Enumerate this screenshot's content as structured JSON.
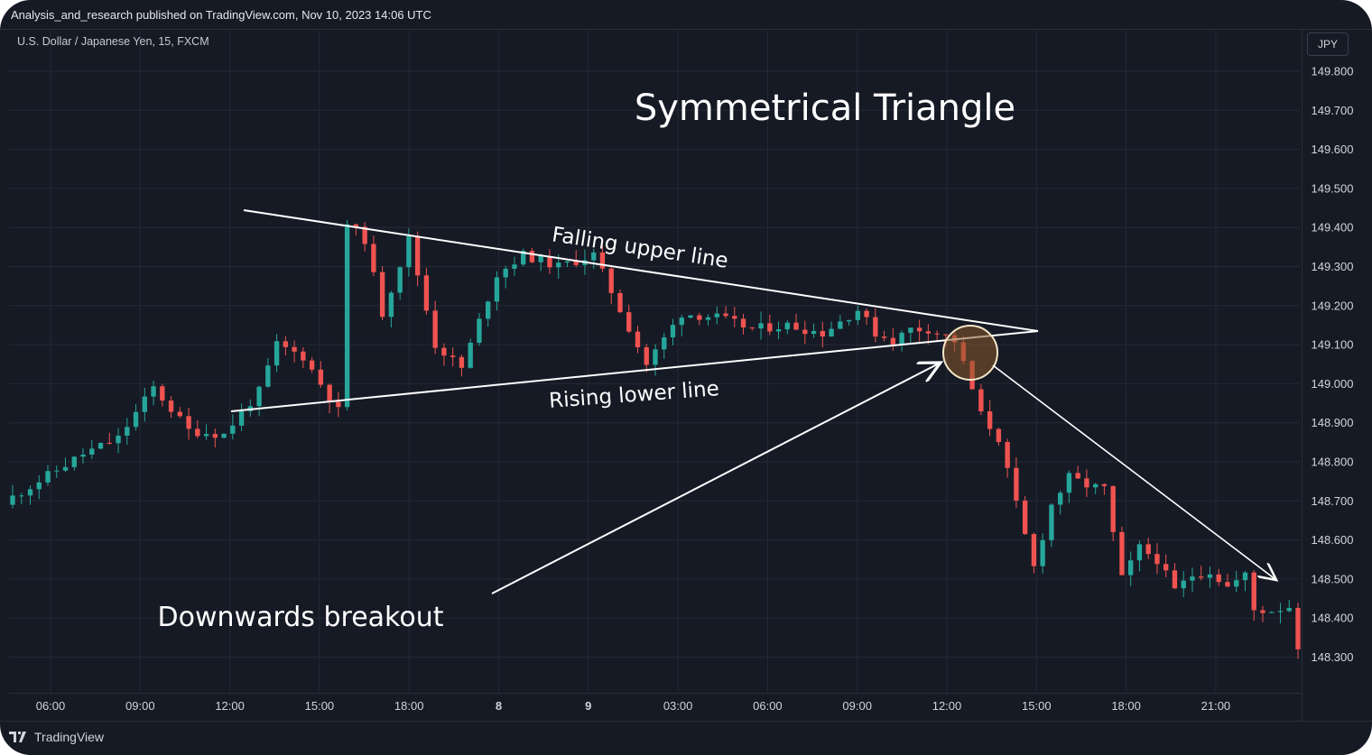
{
  "header": {
    "published": "Analysis_and_research published on TradingView.com, Nov 10, 2023 14:06 UTC"
  },
  "symbol": "U.S. Dollar / Japanese Yen, 15, FXCM",
  "currency": "JPY",
  "footer": {
    "brand": "TradingView"
  },
  "colors": {
    "background": "#161a25",
    "up": "#26a69a",
    "down": "#ef5350",
    "grid": "#242936",
    "annotation": "#ffffff",
    "highlight": "#8a5a2b"
  },
  "annotations": {
    "title": "Symmetrical Triangle",
    "upper_line_label": "Falling upper line",
    "lower_line_label": "Rising lower line",
    "breakout_label": "Downwards breakout"
  },
  "chart_data": {
    "type": "candlestick",
    "title": "Symmetrical Triangle",
    "ylabel": "",
    "xlabel": "",
    "ylim": [
      148.25,
      149.82
    ],
    "y_ticks": [
      "149.800",
      "149.700",
      "149.600",
      "149.500",
      "149.400",
      "149.300",
      "149.200",
      "149.100",
      "149.000",
      "148.900",
      "148.800",
      "148.700",
      "148.600",
      "148.500",
      "148.400",
      "148.300"
    ],
    "x_ticks": [
      "06:00",
      "09:00",
      "12:00",
      "15:00",
      "18:00",
      "8",
      "9",
      "03:00",
      "06:00",
      "09:00",
      "12:00",
      "15:00",
      "18:00",
      "21:00"
    ],
    "grid": true,
    "upper_trendline": {
      "from": [
        "12:30",
        149.45
      ],
      "to": [
        "15:00 (day 3)",
        149.135
      ]
    },
    "lower_trendline": {
      "from": [
        "12:00",
        148.94
      ],
      "to": [
        "15:00 (day 3)",
        149.135
      ]
    },
    "close_path": [
      [
        0,
        148.71
      ],
      [
        8,
        148.82
      ],
      [
        12,
        148.86
      ],
      [
        16,
        148.99
      ],
      [
        20,
        148.88
      ],
      [
        24,
        148.87
      ],
      [
        28,
        148.98
      ],
      [
        30,
        149.1
      ],
      [
        33,
        149.07
      ],
      [
        37,
        148.93
      ],
      [
        38,
        149.41
      ],
      [
        40,
        149.37
      ],
      [
        42,
        149.18
      ],
      [
        45,
        149.37
      ],
      [
        48,
        149.1
      ],
      [
        51,
        149.04
      ],
      [
        55,
        149.28
      ],
      [
        58,
        149.33
      ],
      [
        62,
        149.3
      ],
      [
        66,
        149.33
      ],
      [
        69,
        149.19
      ],
      [
        72,
        149.05
      ],
      [
        76,
        149.18
      ],
      [
        80,
        149.17
      ],
      [
        84,
        149.14
      ],
      [
        88,
        149.15
      ],
      [
        92,
        149.13
      ],
      [
        96,
        149.19
      ],
      [
        98,
        149.13
      ],
      [
        100,
        149.11
      ],
      [
        102,
        149.14
      ],
      [
        104,
        149.14
      ],
      [
        107,
        149.11
      ],
      [
        108,
        149.05
      ],
      [
        110,
        148.92
      ],
      [
        112,
        148.86
      ],
      [
        114,
        148.69
      ],
      [
        116,
        148.53
      ],
      [
        118,
        148.69
      ],
      [
        120,
        148.76
      ],
      [
        122,
        148.74
      ],
      [
        124,
        148.73
      ],
      [
        126,
        148.5
      ],
      [
        128,
        148.58
      ],
      [
        130,
        148.55
      ],
      [
        132,
        148.47
      ],
      [
        134,
        148.51
      ],
      [
        136,
        148.52
      ],
      [
        138,
        148.48
      ],
      [
        140,
        148.51
      ],
      [
        141,
        148.42
      ],
      [
        143,
        148.42
      ],
      [
        145,
        148.43
      ],
      [
        146,
        148.33
      ]
    ]
  }
}
